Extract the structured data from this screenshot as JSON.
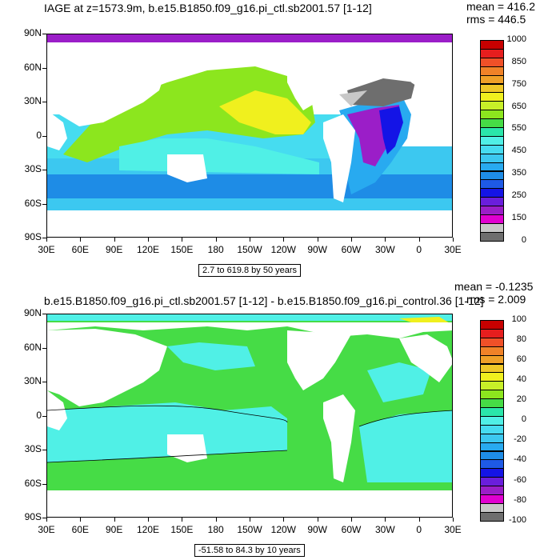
{
  "top_panel": {
    "title": "IAGE at z=1573.9m, b.e15.B1850.f09_g16.pi_ctl.sb2001.57 [1-12]",
    "mean": "mean = 416.2",
    "rms": "rms = 446.5",
    "range_note": "2.7 to 619.8 by 50 years",
    "colorbar": {
      "colors": [
        "#6e6e6e",
        "#c8c8c8",
        "#e000d0",
        "#9b1ec8",
        "#6a1edc",
        "#1414e6",
        "#1e5ae6",
        "#1e8ce6",
        "#28aaf0",
        "#3cc8f0",
        "#46dcf0",
        "#50f0e6",
        "#2ae6aa",
        "#46dc46",
        "#8ce61e",
        "#c8f028",
        "#f0f01e",
        "#f0c828",
        "#f0a028",
        "#f08228",
        "#f05028",
        "#e61e1e",
        "#c80000"
      ],
      "labels": [
        "0",
        "150",
        "250",
        "350",
        "450",
        "550",
        "650",
        "750",
        "850",
        "1000"
      ]
    }
  },
  "bottom_panel": {
    "title": "b.e15.B1850.f09_g16.pi_ctl.sb2001.57 [1-12] - b.e15.B1850.f09_g16.pi_control.36 [1-12]",
    "mean": "mean = -0.1235",
    "rms": "rms = 2.009",
    "range_note": "-51.58 to 84.3 by 10 years",
    "colorbar": {
      "colors": [
        "#6e6e6e",
        "#c8c8c8",
        "#e000d0",
        "#9b1ec8",
        "#6a1edc",
        "#1414e6",
        "#1e5ae6",
        "#1e8ce6",
        "#28aaf0",
        "#3cc8f0",
        "#46dcf0",
        "#50f0e6",
        "#2ae6aa",
        "#46dc46",
        "#8ce61e",
        "#c8f028",
        "#f0f01e",
        "#f0c828",
        "#f0a028",
        "#f08228",
        "#f05028",
        "#e61e1e",
        "#c80000"
      ],
      "labels": [
        "-100",
        "-80",
        "-60",
        "-40",
        "-20",
        "0",
        "20",
        "40",
        "60",
        "80",
        "100"
      ]
    }
  },
  "lat_labels": [
    "90N",
    "60N",
    "30N",
    "0",
    "30S",
    "60S",
    "90S"
  ],
  "lon_labels": [
    "30E",
    "60E",
    "90E",
    "120E",
    "150E",
    "180",
    "150W",
    "120W",
    "90W",
    "60W",
    "30W",
    "0",
    "30E"
  ]
}
